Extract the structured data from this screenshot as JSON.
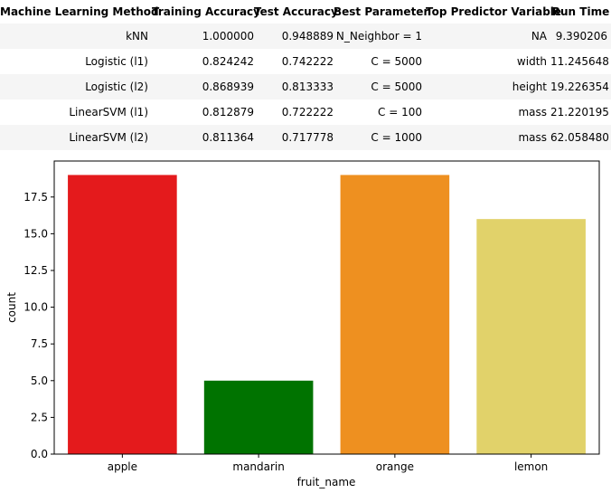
{
  "table": {
    "headers": [
      "Machine Learning Method",
      "Training Accuracy",
      "Test Accuracy",
      "Best Parameter",
      "Top Predictor Variable",
      "Run Time"
    ],
    "rows": [
      [
        "kNN",
        "1.000000",
        "0.948889",
        "N_Neighbor = 1",
        "NA",
        "9.390206"
      ],
      [
        "Logistic (l1)",
        "0.824242",
        "0.742222",
        "C = 5000",
        "width",
        "11.245648"
      ],
      [
        "Logistic (l2)",
        "0.868939",
        "0.813333",
        "C = 5000",
        "height",
        "19.226354"
      ],
      [
        "LinearSVM (l1)",
        "0.812879",
        "0.722222",
        "C = 100",
        "mass",
        "21.220195"
      ],
      [
        "LinearSVM (l2)",
        "0.811364",
        "0.717778",
        "C = 1000",
        "mass",
        "62.058480"
      ]
    ]
  },
  "chart_data": {
    "type": "bar",
    "categories": [
      "apple",
      "mandarin",
      "orange",
      "lemon"
    ],
    "values": [
      19,
      5,
      19,
      16
    ],
    "colors": [
      "#e41a1c",
      "#007300",
      "#ee9020",
      "#e1d26a"
    ],
    "xlabel": "fruit_name",
    "ylabel": "count",
    "ylim": [
      0,
      19.95
    ],
    "yticks": [
      "0.0",
      "2.5",
      "5.0",
      "7.5",
      "10.0",
      "12.5",
      "15.0",
      "17.5"
    ],
    "grid": false
  }
}
